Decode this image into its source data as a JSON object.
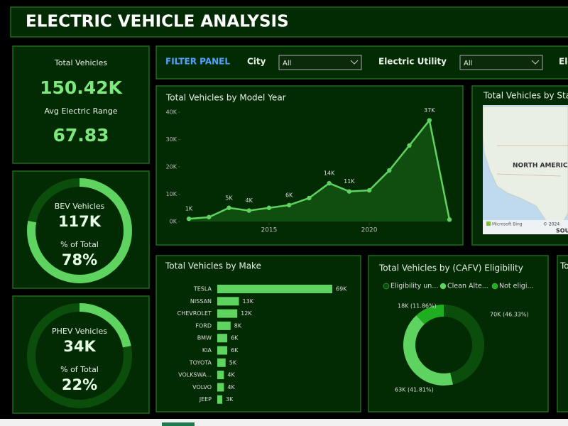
{
  "header": {
    "title": "ELECTRIC VEHICLE ANALYSIS"
  },
  "kpi_cards": [
    {
      "items": [
        {
          "label": "Total Vehicles",
          "value": "150.42K"
        },
        {
          "label": "Avg Electric Range",
          "value": "67.83"
        }
      ]
    },
    {
      "items": [
        {
          "label": "BEV Vehicles",
          "value": "117K"
        },
        {
          "label": "% of Total",
          "value": "78%"
        }
      ],
      "ring": 78
    },
    {
      "items": [
        {
          "label": "PHEV Vehicles",
          "value": "34K"
        },
        {
          "label": "% of Total",
          "value": "22%"
        }
      ],
      "ring": 22
    }
  ],
  "filter_panel": {
    "title": "FILTER PANEL",
    "filters": [
      {
        "label": "City",
        "value": "All"
      },
      {
        "label": "Electric Utility",
        "value": "All"
      }
    ],
    "cut_label": "Ele"
  },
  "charts": {
    "model_year": {
      "type": "line",
      "title": "Total Vehicles by Model Year",
      "x": [
        2011,
        2012,
        2013,
        2014,
        2015,
        2016,
        2017,
        2018,
        2019,
        2020,
        2021,
        2022,
        2023,
        2024
      ],
      "values": [
        1000,
        1600,
        5000,
        4000,
        5000,
        6000,
        8600,
        14000,
        11000,
        11400,
        18700,
        27800,
        37000,
        700
      ],
      "value_labels": [
        "1K",
        null,
        "5K",
        "4K",
        null,
        "6K",
        null,
        "14K",
        "11K",
        null,
        null,
        null,
        "37K",
        null
      ],
      "color": "#5fd35f",
      "xlim": [
        2011,
        2024
      ],
      "xticks": [
        2015,
        2020
      ],
      "ylim": [
        0,
        40000
      ],
      "yticks": [
        {
          "value": 0,
          "label": "0K"
        },
        {
          "value": 10000,
          "label": "10K"
        },
        {
          "value": 20000,
          "label": "20K"
        },
        {
          "value": 30000,
          "label": "30K"
        },
        {
          "value": 40000,
          "label": "40K"
        }
      ]
    },
    "map": {
      "title": "Total Vehicles by Sta",
      "region_label": "NORTH AMERICA",
      "attribution": "Microsoft Bing",
      "copyright": "© 2024",
      "cut_label": "SOU"
    },
    "make": {
      "type": "bar",
      "title": "Total Vehicles by Make",
      "categories": [
        "TESLA",
        "NISSAN",
        "CHEVROLET",
        "FORD",
        "BMW",
        "KIA",
        "TOYOTA",
        "VOLKSWA...",
        "VOLVO",
        "JEEP"
      ],
      "values": [
        69,
        13,
        12,
        8,
        6,
        6,
        5,
        4,
        4,
        3
      ],
      "value_labels": [
        "69K",
        "13K",
        "12K",
        "8K",
        "6K",
        "6K",
        "5K",
        "4K",
        "4K",
        "3K"
      ],
      "color": "#5fd35f"
    },
    "eligibility": {
      "type": "pie",
      "title": "Total Vehicles by (CAFV) Eligibility",
      "categories": [
        "Eligibility un...",
        "Clean Alte...",
        "Not eligi..."
      ],
      "values": [
        46.33,
        41.81,
        11.86
      ],
      "value_labels": [
        "70K (46.33%)",
        "63K (41.81%)",
        "18K (11.86%)"
      ],
      "colors": [
        "#0b4d0b",
        "#5fd35f",
        "#1fae1f"
      ]
    }
  },
  "side_panel": {
    "title": "To"
  }
}
